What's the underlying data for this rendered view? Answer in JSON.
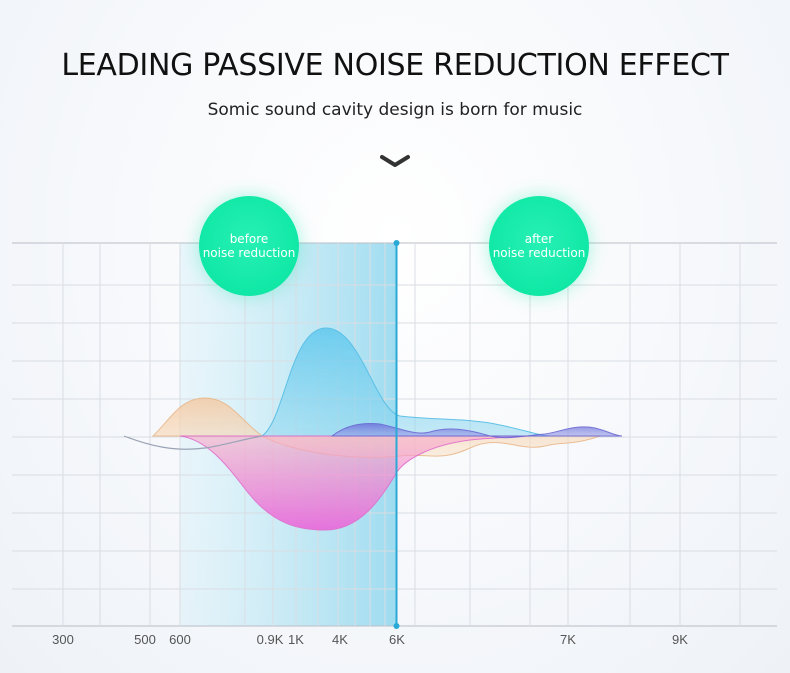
{
  "headline": "LEADING PASSIVE NOISE REDUCTION EFFECT",
  "subhead": "Somic sound cavity design is born for music",
  "chevron_icon": "chevron-down-icon",
  "badges": {
    "before": {
      "line1": "before",
      "line2": "noise reduction"
    },
    "after": {
      "line1": "after",
      "line2": "noise reduction"
    }
  },
  "colors": {
    "badge": "#10e8a6",
    "highlight_band": "#9fdcef",
    "divider": "#29a9d6",
    "blue_wave": "#5cc4ea",
    "pink_wave": "#ee7ad6",
    "orange_wave": "#f3c89a",
    "purple_wave": "#6f6fd8",
    "grid": "#d9dde3"
  },
  "chart_data": {
    "type": "area",
    "x_ticks": [
      "300",
      "500",
      "600",
      "0.9K",
      "1K",
      "4K",
      "6K",
      "7K",
      "9K"
    ],
    "divider_at": "6K",
    "grid": true,
    "y_axis": "none"
  }
}
